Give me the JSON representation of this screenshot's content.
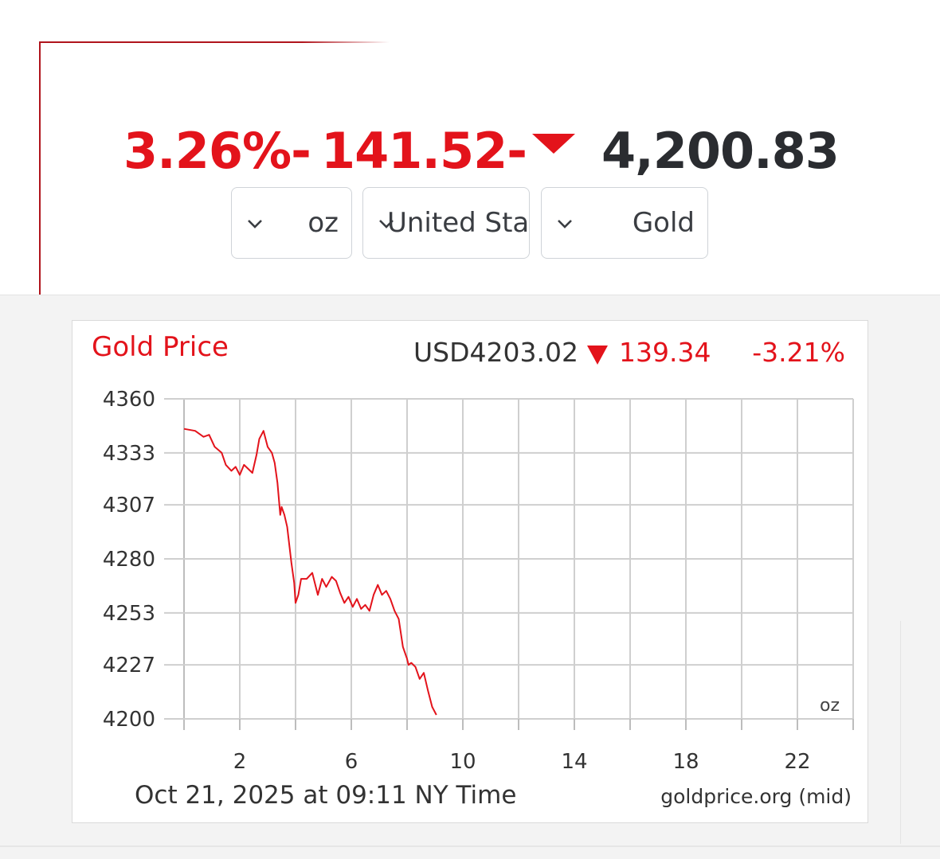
{
  "ticker": {
    "change_percent": "3.26%-",
    "change_amount": "141.52-",
    "direction_icon": "down-triangle-icon",
    "price": "4,200.83",
    "down_color": "#e3131b",
    "price_color": "#2a2c30"
  },
  "selectors": {
    "unit": {
      "value": "oz",
      "icon": "chevron-down-icon"
    },
    "currency": {
      "value": "United States Dollar",
      "icon": "chevron-down-icon"
    },
    "metal": {
      "value": "Gold",
      "icon": "chevron-down-icon"
    }
  },
  "chart_data": {
    "type": "line",
    "title": "Gold Price",
    "quote": "USD4203.02",
    "quote_direction_icon": "down-triangle-icon",
    "quote_change": "139.34",
    "quote_change_percent": "-3.21%",
    "unit_label": "oz",
    "footer_time": "Oct 21, 2025 at 09:11 NY Time",
    "footer_source": "goldprice.org (mid)",
    "xlabel": "",
    "ylabel": "",
    "xlim": [
      0,
      24
    ],
    "ylim": [
      4200,
      4360
    ],
    "x_ticks": [
      2,
      6,
      10,
      14,
      18,
      22
    ],
    "y_ticks": [
      4360,
      4333,
      4307,
      4280,
      4253,
      4227,
      4200
    ],
    "grid": true,
    "series": [
      {
        "color": "#e3131b",
        "x": [
          0.0,
          0.4,
          0.7,
          0.9,
          1.1,
          1.35,
          1.5,
          1.7,
          1.85,
          2.0,
          2.15,
          2.3,
          2.45,
          2.6,
          2.7,
          2.85,
          3.0,
          3.15,
          3.25,
          3.35,
          3.45,
          3.5,
          3.6,
          3.7,
          3.85,
          3.95,
          4.0,
          4.1,
          4.2,
          4.4,
          4.6,
          4.8,
          4.95,
          5.1,
          5.3,
          5.45,
          5.6,
          5.75,
          5.9,
          6.05,
          6.2,
          6.35,
          6.5,
          6.65,
          6.8,
          6.95,
          7.1,
          7.25,
          7.4,
          7.55,
          7.7,
          7.85,
          8.0,
          8.05,
          8.15,
          8.3,
          8.45,
          8.6,
          8.75,
          8.9,
          9.05
        ],
        "values": [
          4345,
          4344,
          4341,
          4342,
          4336,
          4333,
          4327,
          4324,
          4326,
          4322,
          4327,
          4325,
          4323,
          4332,
          4340,
          4344,
          4336,
          4333,
          4328,
          4318,
          4302,
          4306,
          4302,
          4296,
          4278,
          4268,
          4258,
          4262,
          4270,
          4270,
          4273,
          4262,
          4270,
          4266,
          4271,
          4269,
          4263,
          4258,
          4261,
          4256,
          4260,
          4255,
          4257,
          4254,
          4262,
          4267,
          4262,
          4264,
          4260,
          4254,
          4250,
          4236,
          4230,
          4227,
          4228,
          4226,
          4220,
          4223,
          4214,
          4206,
          4202
        ]
      }
    ]
  }
}
